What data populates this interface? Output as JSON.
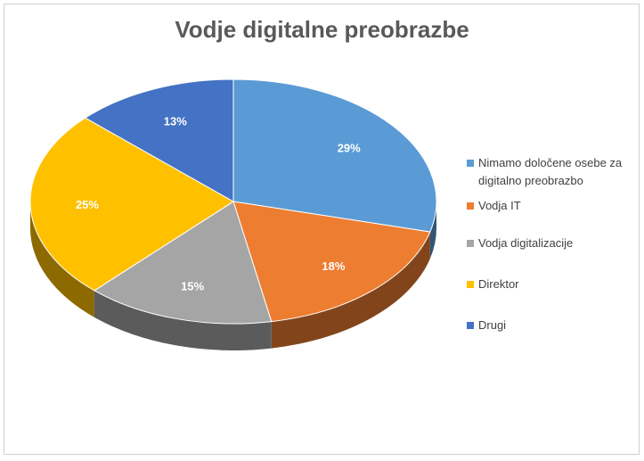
{
  "chart_data": {
    "type": "pie",
    "title": "Vodje digitalne preobrazbe",
    "slices": [
      {
        "label_lines": [
          "Nimamo določene osebe za",
          "digitalno preobrazbo"
        ],
        "value": 29,
        "label": "29%",
        "color": "#5b9bd5"
      },
      {
        "label_lines": [
          "Vodja IT"
        ],
        "value": 18,
        "label": "18%",
        "color": "#ed7d31"
      },
      {
        "label_lines": [
          "Vodja digitalizacije"
        ],
        "value": 15,
        "label": "15%",
        "color": "#a5a5a5"
      },
      {
        "label_lines": [
          "Direktor"
        ],
        "value": 25,
        "label": "25%",
        "color": "#ffc000"
      },
      {
        "label_lines": [
          "Drugi"
        ],
        "value": 13,
        "label": "13%",
        "color": "#4472c4"
      }
    ],
    "legend_position": "right"
  }
}
